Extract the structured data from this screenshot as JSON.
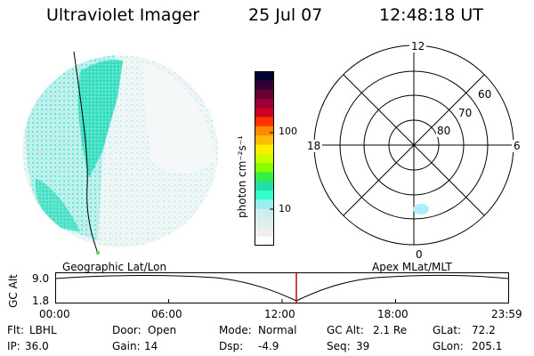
{
  "header": {
    "instrument": "Ultraviolet Imager",
    "date": "25 Jul 07",
    "time": "12:48:18 UT"
  },
  "colorbar": {
    "units": "photon cm⁻²s⁻¹",
    "ticks": [
      "100",
      "10"
    ],
    "colors": [
      "#000033",
      "#330033",
      "#660033",
      "#990033",
      "#cc0022",
      "#ff3300",
      "#ff8800",
      "#ffbb00",
      "#ffee00",
      "#ccff00",
      "#88ff00",
      "#33ee44",
      "#22ddaa",
      "#33ffcc",
      "#99eeee",
      "#cceeee",
      "#ddeeee",
      "#eeeeee",
      "#ffffff"
    ]
  },
  "polar": {
    "top_label": "12",
    "bottom_label": "0",
    "left_label": "18",
    "right_label": "6",
    "lat_labels": [
      "60",
      "70",
      "80"
    ]
  },
  "timeline": {
    "left_title": "Geographic Lat/Lon",
    "right_title": "Apex MLat/MLT",
    "ylabel": "GC Alt",
    "ymax": "9.0",
    "ymin": "1.8",
    "ticks": [
      "00:00",
      "06:00",
      "12:00",
      "18:00",
      "23:59"
    ],
    "marker_color": "#cc0000"
  },
  "status": {
    "row1": [
      {
        "key": "Flt:",
        "val": "LBHL"
      },
      {
        "key": "Door:",
        "val": "Open"
      },
      {
        "key": "Mode:",
        "val": "Normal"
      },
      {
        "key": "GC Alt:",
        "val": "2.1 Re"
      },
      {
        "key": "GLat:",
        "val": "72.2"
      }
    ],
    "row2": [
      {
        "key": "IP:",
        "val": "36.0"
      },
      {
        "key": "Gain:",
        "val": "14"
      },
      {
        "key": "Dsp:",
        "val": "-4.9"
      },
      {
        "key": "Seq:",
        "val": "39"
      },
      {
        "key": "GLon:",
        "val": "205.1"
      }
    ]
  }
}
